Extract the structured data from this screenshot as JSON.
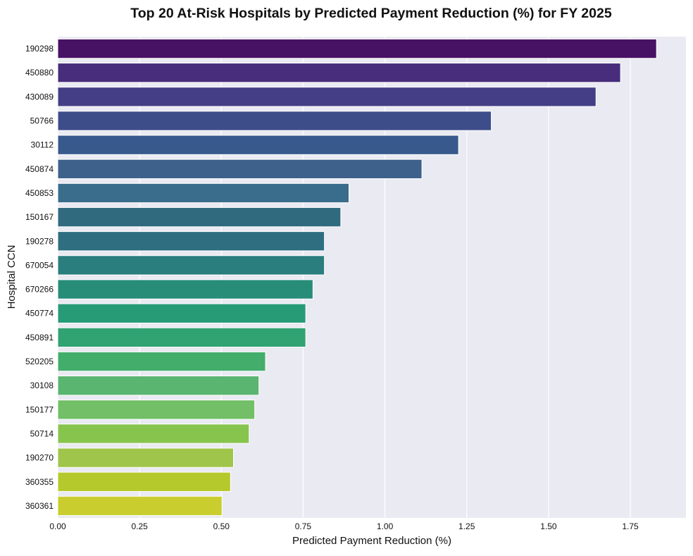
{
  "chart_data": {
    "type": "bar",
    "orientation": "horizontal",
    "title": "Top 20 At-Risk Hospitals by Predicted Payment Reduction (%) for FY 2025",
    "xlabel": "Predicted Payment Reduction (%)",
    "ylabel": "Hospital CCN",
    "xlim": [
      0,
      1.92
    ],
    "xticks": [
      "0.00",
      "0.25",
      "0.50",
      "0.75",
      "1.00",
      "1.25",
      "1.50",
      "1.75"
    ],
    "grid": true,
    "legend": "none",
    "palette": "viridis",
    "categories": [
      "190298",
      "450880",
      "430089",
      "50766",
      "30112",
      "450874",
      "450853",
      "150167",
      "190278",
      "670054",
      "670266",
      "450774",
      "450891",
      "520205",
      "30108",
      "150177",
      "50714",
      "190270",
      "360355",
      "360361"
    ],
    "values": [
      1.83,
      1.72,
      1.645,
      1.325,
      1.225,
      1.113,
      0.89,
      0.865,
      0.815,
      0.815,
      0.78,
      0.758,
      0.758,
      0.635,
      0.615,
      0.602,
      0.585,
      0.537,
      0.528,
      0.502
    ],
    "colors": [
      "#471164",
      "#472d7b",
      "#433e85",
      "#3d4d8a",
      "#38598c",
      "#3e618b",
      "#3a6c8c",
      "#306a7f",
      "#2e6e80",
      "#2a7e7d",
      "#288d78",
      "#279a76",
      "#31a272",
      "#43ad6b",
      "#59b570",
      "#72bf67",
      "#87c44e",
      "#9fc54a",
      "#b5c92c",
      "#c9cd2e"
    ]
  }
}
